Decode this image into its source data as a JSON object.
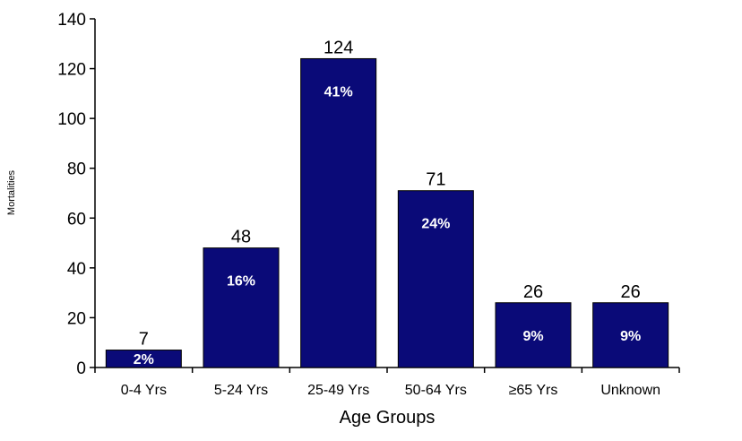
{
  "chart_data": {
    "type": "bar",
    "categories": [
      "0-4 Yrs",
      "5-24 Yrs",
      "25-49 Yrs",
      "50-64 Yrs",
      "≥65  Yrs",
      "Unknown"
    ],
    "values": [
      7,
      48,
      124,
      71,
      26,
      26
    ],
    "value_labels": [
      "7",
      "48",
      "124",
      "71",
      "26",
      "26"
    ],
    "percent_labels": [
      "2%",
      "16%",
      "41%",
      "24%",
      "9%",
      "9%"
    ],
    "xlabel": "Age Groups",
    "ylabel": "Mortalities",
    "ylim": [
      0,
      140
    ],
    "yticks": [
      0,
      20,
      40,
      60,
      80,
      100,
      120,
      140
    ],
    "bar_color": "#0a0a78",
    "grid": false,
    "legend": "none"
  }
}
